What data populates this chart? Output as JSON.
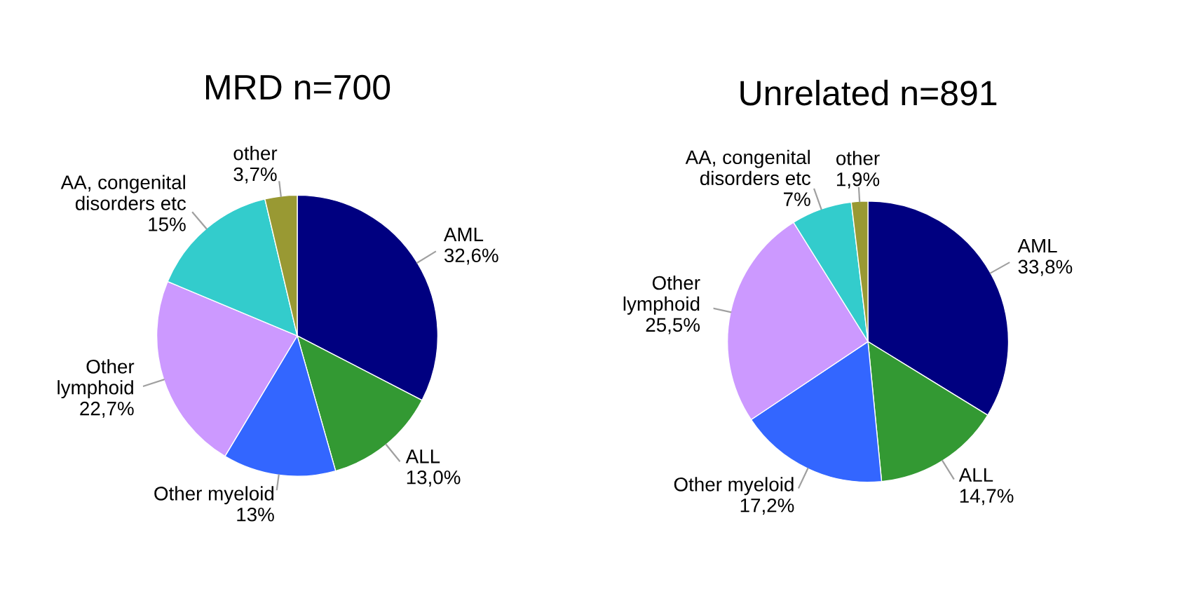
{
  "chart_data": [
    {
      "type": "pie",
      "title": "MRD n=700",
      "categories": [
        "AML",
        "ALL",
        "Other myeloid",
        "Other\nlymphoid",
        "AA, congenital\ndisorders etc",
        "other"
      ],
      "values": [
        32.6,
        13.0,
        13,
        22.7,
        15,
        3.7
      ],
      "value_labels": [
        "32,6%",
        "13,0%",
        "13%",
        "22,7%",
        "15%",
        "3,7%"
      ],
      "colors": [
        "#000080",
        "#339933",
        "#3366ff",
        "#cc99ff",
        "#33cccc",
        "#999933"
      ]
    },
    {
      "type": "pie",
      "title": "Unrelated n=891",
      "categories": [
        "AML",
        "ALL",
        "Other myeloid",
        "Other\nlymphoid",
        "AA, congenital\ndisorders etc",
        "other"
      ],
      "values": [
        33.8,
        14.7,
        17.2,
        25.5,
        7,
        1.9
      ],
      "value_labels": [
        "33,8%",
        "14,7%",
        "17,2%",
        "25,5%",
        "7%",
        "1,9%"
      ],
      "colors": [
        "#000080",
        "#339933",
        "#3366ff",
        "#cc99ff",
        "#33cccc",
        "#999933"
      ]
    }
  ]
}
